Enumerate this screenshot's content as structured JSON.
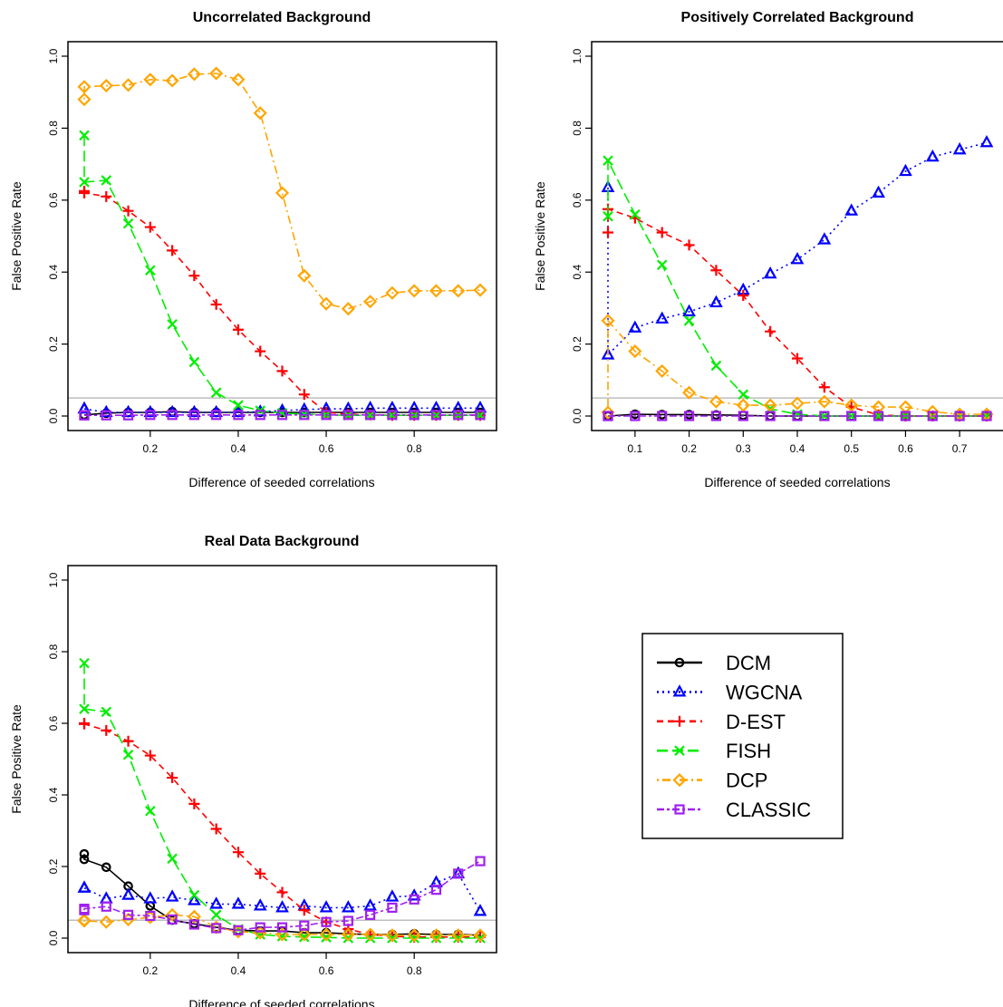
{
  "figure": {
    "legend": {
      "entries": [
        {
          "label": "DCM",
          "color": "#000000",
          "marker": "circle",
          "dash": "solid"
        },
        {
          "label": "WGCNA",
          "color": "#0000ff",
          "marker": "triangle",
          "dash": "dotted"
        },
        {
          "label": "D-EST",
          "color": "#ff0000",
          "marker": "plus",
          "dash": "dashed"
        },
        {
          "label": "FISH",
          "color": "#00ee00",
          "marker": "cross",
          "dash": "longdash"
        },
        {
          "label": "DCP",
          "color": "#ffa500",
          "marker": "diamond",
          "dash": "dotdash"
        },
        {
          "label": "CLASSIC",
          "color": "#a020f0",
          "marker": "square",
          "dash": "twodash"
        }
      ]
    }
  },
  "chart_data": [
    {
      "type": "line",
      "title": "Uncorrelated Background",
      "xlabel": "Difference of seeded correlations",
      "ylabel": "False Positive Rate",
      "xlim": [
        0.05,
        0.95
      ],
      "ylim": [
        0,
        1
      ],
      "xticks": [
        0.2,
        0.4,
        0.6,
        0.8
      ],
      "xtick_labels": [
        "0.2",
        "0.4",
        "0.6",
        "0.8"
      ],
      "yticks": [
        0,
        0.2,
        0.4,
        0.6,
        0.8,
        1.0
      ],
      "ytick_labels": [
        "0.0",
        "0.2",
        "0.4",
        "0.6",
        "0.8",
        "1.0"
      ],
      "hline": 0.05,
      "series": [
        {
          "name": "DCM",
          "x": [
            0.05,
            0.05,
            0.1,
            0.15,
            0.2,
            0.25,
            0.3,
            0.35,
            0.4,
            0.45,
            0.5,
            0.55,
            0.6,
            0.65,
            0.7,
            0.75,
            0.8,
            0.85,
            0.9,
            0.95
          ],
          "y": [
            0.003,
            0.003,
            0.008,
            0.01,
            0.01,
            0.012,
            0.01,
            0.01,
            0.01,
            0.01,
            0.01,
            0.01,
            0.01,
            0.01,
            0.01,
            0.01,
            0.01,
            0.01,
            0.01,
            0.01
          ]
        },
        {
          "name": "WGCNA",
          "x": [
            0.05,
            0.05,
            0.1,
            0.15,
            0.2,
            0.25,
            0.3,
            0.35,
            0.4,
            0.45,
            0.5,
            0.55,
            0.6,
            0.65,
            0.7,
            0.75,
            0.8,
            0.85,
            0.9,
            0.95
          ],
          "y": [
            0.02,
            0.02,
            0.01,
            0.01,
            0.01,
            0.01,
            0.01,
            0.01,
            0.01,
            0.012,
            0.015,
            0.018,
            0.02,
            0.02,
            0.022,
            0.022,
            0.022,
            0.022,
            0.022,
            0.022
          ]
        },
        {
          "name": "D-EST",
          "x": [
            0.05,
            0.05,
            0.1,
            0.15,
            0.2,
            0.25,
            0.3,
            0.35,
            0.4,
            0.45,
            0.5,
            0.55,
            0.6,
            0.65,
            0.7,
            0.75,
            0.8,
            0.85,
            0.9,
            0.95
          ],
          "y": [
            0.625,
            0.62,
            0.61,
            0.57,
            0.525,
            0.46,
            0.39,
            0.31,
            0.24,
            0.18,
            0.125,
            0.06,
            0.01,
            0.005,
            0.003,
            0.002,
            0.002,
            0.002,
            0.002,
            0.002
          ]
        },
        {
          "name": "FISH",
          "x": [
            0.05,
            0.05,
            0.1,
            0.15,
            0.2,
            0.25,
            0.3,
            0.35,
            0.4,
            0.45,
            0.5,
            0.55,
            0.6,
            0.65,
            0.7,
            0.75,
            0.8,
            0.85,
            0.9,
            0.95
          ],
          "y": [
            0.78,
            0.65,
            0.655,
            0.535,
            0.405,
            0.255,
            0.15,
            0.065,
            0.03,
            0.015,
            0.008,
            0.005,
            0.003,
            0.002,
            0.002,
            0.002,
            0.002,
            0.002,
            0.002,
            0.002
          ]
        },
        {
          "name": "DCP",
          "x": [
            0.05,
            0.05,
            0.1,
            0.15,
            0.2,
            0.25,
            0.3,
            0.35,
            0.4,
            0.45,
            0.5,
            0.55,
            0.6,
            0.65,
            0.7,
            0.75,
            0.8,
            0.85,
            0.9,
            0.95
          ],
          "y": [
            0.88,
            0.915,
            0.918,
            0.92,
            0.935,
            0.932,
            0.95,
            0.952,
            0.935,
            0.842,
            0.62,
            0.39,
            0.312,
            0.298,
            0.318,
            0.342,
            0.348,
            0.348,
            0.348,
            0.35
          ]
        },
        {
          "name": "CLASSIC",
          "x": [
            0.05,
            0.05,
            0.1,
            0.15,
            0.2,
            0.25,
            0.3,
            0.35,
            0.4,
            0.45,
            0.5,
            0.55,
            0.6,
            0.65,
            0.7,
            0.75,
            0.8,
            0.85,
            0.9,
            0.95
          ],
          "y": [
            0.002,
            0.002,
            0.002,
            0.002,
            0.003,
            0.003,
            0.003,
            0.003,
            0.003,
            0.003,
            0.003,
            0.003,
            0.003,
            0.003,
            0.003,
            0.003,
            0.003,
            0.003,
            0.003,
            0.003
          ]
        }
      ]
    },
    {
      "type": "line",
      "title": "Positively Correlated Background",
      "xlabel": "Difference of seeded correlations",
      "ylabel": "False Positive Rate",
      "xlim": [
        0.05,
        0.75
      ],
      "ylim": [
        0,
        1
      ],
      "xticks": [
        0.1,
        0.2,
        0.3,
        0.4,
        0.5,
        0.6,
        0.7
      ],
      "xtick_labels": [
        "0.1",
        "0.2",
        "0.3",
        "0.4",
        "0.5",
        "0.6",
        "0.7"
      ],
      "yticks": [
        0,
        0.2,
        0.4,
        0.6,
        0.8,
        1.0
      ],
      "ytick_labels": [
        "0.0",
        "0.2",
        "0.4",
        "0.6",
        "0.8",
        "1.0"
      ],
      "hline": 0.05,
      "series": [
        {
          "name": "DCM",
          "x": [
            0.05,
            0.05,
            0.1,
            0.15,
            0.2,
            0.25,
            0.3,
            0.35,
            0.4,
            0.45,
            0.5,
            0.55,
            0.6,
            0.65,
            0.7,
            0.75
          ],
          "y": [
            0.0,
            0.0,
            0.005,
            0.004,
            0.004,
            0.003,
            0.002,
            0.0,
            0.0,
            0.0,
            0.0,
            0.0,
            0.0,
            0.0,
            0.0,
            0.0
          ]
        },
        {
          "name": "WGCNA",
          "x": [
            0.05,
            0.05,
            0.1,
            0.15,
            0.2,
            0.25,
            0.3,
            0.35,
            0.4,
            0.45,
            0.5,
            0.55,
            0.6,
            0.65,
            0.7,
            0.75
          ],
          "y": [
            0.635,
            0.17,
            0.245,
            0.27,
            0.29,
            0.315,
            0.35,
            0.395,
            0.435,
            0.49,
            0.57,
            0.62,
            0.68,
            0.72,
            0.74,
            0.76
          ]
        },
        {
          "name": "D-EST",
          "x": [
            0.05,
            0.05,
            0.1,
            0.15,
            0.2,
            0.25,
            0.3,
            0.35,
            0.4,
            0.45,
            0.5,
            0.55,
            0.6,
            0.65,
            0.7,
            0.75
          ],
          "y": [
            0.51,
            0.575,
            0.55,
            0.51,
            0.475,
            0.405,
            0.335,
            0.235,
            0.16,
            0.08,
            0.025,
            0.003,
            0.0,
            0.0,
            0.0,
            0.0
          ]
        },
        {
          "name": "FISH",
          "x": [
            0.05,
            0.05,
            0.1,
            0.15,
            0.2,
            0.25,
            0.3,
            0.35,
            0.4,
            0.45,
            0.5,
            0.55,
            0.6,
            0.65,
            0.7,
            0.75
          ],
          "y": [
            0.555,
            0.71,
            0.56,
            0.42,
            0.265,
            0.14,
            0.06,
            0.02,
            0.005,
            0.0,
            0.0,
            0.0,
            0.0,
            0.0,
            0.0,
            0.0
          ]
        },
        {
          "name": "DCP",
          "x": [
            0.05,
            0.05,
            0.1,
            0.15,
            0.2,
            0.25,
            0.3,
            0.35,
            0.4,
            0.45,
            0.5,
            0.55,
            0.6,
            0.65,
            0.7,
            0.75
          ],
          "y": [
            0.01,
            0.265,
            0.18,
            0.125,
            0.065,
            0.04,
            0.03,
            0.03,
            0.035,
            0.04,
            0.03,
            0.025,
            0.025,
            0.012,
            0.005,
            0.005
          ]
        },
        {
          "name": "CLASSIC",
          "x": [
            0.05,
            0.05,
            0.1,
            0.15,
            0.2,
            0.25,
            0.3,
            0.35,
            0.4,
            0.45,
            0.5,
            0.55,
            0.6,
            0.65,
            0.7,
            0.75
          ],
          "y": [
            0.0,
            0.0,
            0.0,
            0.0,
            0.0,
            0.0,
            0.0,
            0.0,
            0.0,
            0.0,
            0.0,
            0.0,
            0.0,
            0.0,
            0.0,
            0.0
          ]
        }
      ]
    },
    {
      "type": "line",
      "title": "Real Data Background",
      "xlabel": "Difference of seeded correlations",
      "ylabel": "False Positive Rate",
      "xlim": [
        0.05,
        0.95
      ],
      "ylim": [
        0,
        1
      ],
      "xticks": [
        0.2,
        0.4,
        0.6,
        0.8
      ],
      "xtick_labels": [
        "0.2",
        "0.4",
        "0.6",
        "0.8"
      ],
      "yticks": [
        0,
        0.2,
        0.4,
        0.6,
        0.8,
        1.0
      ],
      "ytick_labels": [
        "0.0",
        "0.2",
        "0.4",
        "0.6",
        "0.8",
        "1.0"
      ],
      "hline": 0.05,
      "series": [
        {
          "name": "DCM",
          "x": [
            0.05,
            0.05,
            0.1,
            0.15,
            0.2,
            0.25,
            0.3,
            0.35,
            0.4,
            0.45,
            0.5,
            0.55,
            0.6,
            0.65,
            0.7,
            0.75,
            0.8,
            0.85,
            0.9,
            0.95
          ],
          "y": [
            0.235,
            0.22,
            0.198,
            0.145,
            0.09,
            0.05,
            0.04,
            0.03,
            0.022,
            0.02,
            0.02,
            0.015,
            0.015,
            0.012,
            0.01,
            0.01,
            0.012,
            0.01,
            0.01,
            0.008
          ]
        },
        {
          "name": "WGCNA",
          "x": [
            0.05,
            0.05,
            0.1,
            0.15,
            0.2,
            0.25,
            0.3,
            0.35,
            0.4,
            0.45,
            0.5,
            0.55,
            0.6,
            0.65,
            0.7,
            0.75,
            0.8,
            0.85,
            0.9,
            0.95
          ],
          "y": [
            0.14,
            0.14,
            0.11,
            0.12,
            0.11,
            0.115,
            0.105,
            0.095,
            0.095,
            0.09,
            0.085,
            0.09,
            0.085,
            0.085,
            0.09,
            0.115,
            0.118,
            0.155,
            0.18,
            0.075
          ]
        },
        {
          "name": "D-EST",
          "x": [
            0.05,
            0.05,
            0.1,
            0.15,
            0.2,
            0.25,
            0.3,
            0.35,
            0.4,
            0.45,
            0.5,
            0.55,
            0.6,
            0.65,
            0.7,
            0.75,
            0.8,
            0.85,
            0.9,
            0.95
          ],
          "y": [
            0.6,
            0.598,
            0.58,
            0.55,
            0.51,
            0.448,
            0.375,
            0.305,
            0.24,
            0.18,
            0.128,
            0.078,
            0.045,
            0.025,
            0.01,
            0.005,
            0.003,
            0.003,
            0.003,
            0.003
          ]
        },
        {
          "name": "FISH",
          "x": [
            0.05,
            0.05,
            0.1,
            0.15,
            0.2,
            0.25,
            0.3,
            0.35,
            0.4,
            0.45,
            0.5,
            0.55,
            0.6,
            0.65,
            0.7,
            0.75,
            0.8,
            0.85,
            0.9,
            0.95
          ],
          "y": [
            0.768,
            0.64,
            0.632,
            0.512,
            0.355,
            0.222,
            0.12,
            0.065,
            0.025,
            0.01,
            0.005,
            0.003,
            0.002,
            0.0,
            0.0,
            0.0,
            0.0,
            0.0,
            0.0,
            0.0
          ]
        },
        {
          "name": "DCP",
          "x": [
            0.05,
            0.05,
            0.1,
            0.15,
            0.2,
            0.25,
            0.3,
            0.35,
            0.4,
            0.45,
            0.5,
            0.55,
            0.6,
            0.65,
            0.7,
            0.75,
            0.8,
            0.85,
            0.9,
            0.95
          ],
          "y": [
            0.05,
            0.048,
            0.045,
            0.052,
            0.058,
            0.065,
            0.06,
            0.03,
            0.018,
            0.015,
            0.01,
            0.01,
            0.01,
            0.01,
            0.01,
            0.008,
            0.008,
            0.008,
            0.008,
            0.008
          ]
        },
        {
          "name": "CLASSIC",
          "x": [
            0.05,
            0.05,
            0.1,
            0.15,
            0.2,
            0.25,
            0.3,
            0.35,
            0.4,
            0.45,
            0.5,
            0.55,
            0.6,
            0.65,
            0.7,
            0.75,
            0.8,
            0.85,
            0.9,
            0.95
          ],
          "y": [
            0.078,
            0.082,
            0.088,
            0.065,
            0.062,
            0.052,
            0.038,
            0.028,
            0.022,
            0.03,
            0.03,
            0.035,
            0.045,
            0.048,
            0.065,
            0.085,
            0.108,
            0.135,
            0.18,
            0.215
          ]
        }
      ]
    }
  ]
}
